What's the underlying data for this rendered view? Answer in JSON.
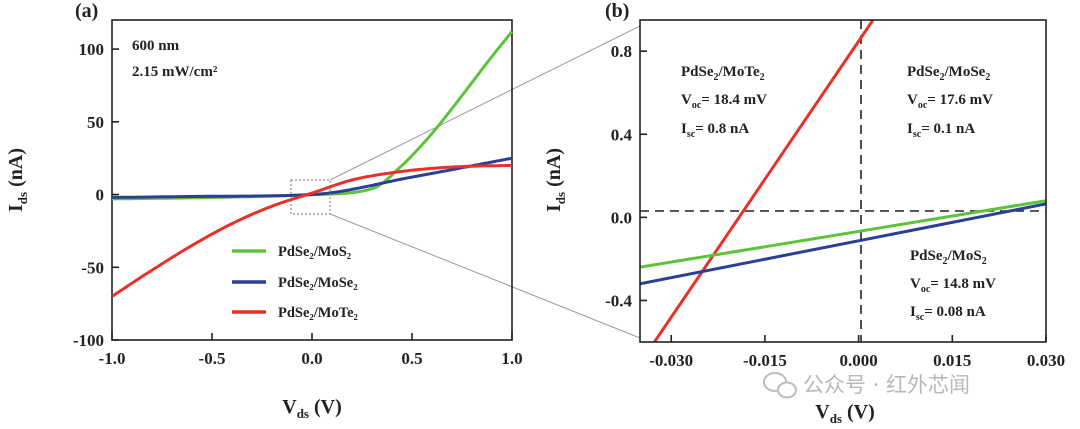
{
  "chart_data": [
    {
      "panel": "(a)",
      "type": "line",
      "xlabel": "V_ds (V)",
      "ylabel": "I_ds (nA)",
      "xlim": [
        -1.0,
        1.0
      ],
      "ylim": [
        -100,
        120
      ],
      "xticks": [
        "-1.0",
        "-0.5",
        "0.0",
        "0.5",
        "1.0"
      ],
      "yticks": [
        "-100",
        "-50",
        "0",
        "50",
        "100"
      ],
      "annotation": [
        "600 nm",
        "2.15 mW/cm²"
      ],
      "legend": "lower-center",
      "series": [
        {
          "name": "PdSe₂/MoS₂",
          "color": "#5cc43a",
          "x": [
            -1.0,
            -0.5,
            0.0,
            0.3,
            0.45,
            0.6,
            0.75,
            0.9,
            1.0
          ],
          "y": [
            -3,
            -2,
            -0.1,
            4,
            20,
            42,
            68,
            95,
            112
          ]
        },
        {
          "name": "PdSe₂/MoSe₂",
          "color": "#2b3f96",
          "x": [
            -1.0,
            -0.5,
            0.0,
            0.5,
            1.0
          ],
          "y": [
            -2,
            -1.2,
            0,
            12,
            25
          ]
        },
        {
          "name": "PdSe₂/MoTe₂",
          "color": "#e8312a",
          "x": [
            -1.0,
            -0.8,
            -0.6,
            -0.4,
            -0.2,
            0.0,
            0.2,
            0.4,
            0.6,
            0.8,
            1.0
          ],
          "y": [
            -70,
            -52,
            -35,
            -20,
            -8,
            1,
            10,
            15,
            18,
            19.5,
            20
          ]
        }
      ]
    },
    {
      "panel": "(b)",
      "type": "line",
      "xlabel": "V_ds (V)",
      "ylabel": "I_ds (nA)",
      "xlim": [
        -0.035,
        0.03
      ],
      "ylim": [
        -0.6,
        0.95
      ],
      "xticks": [
        "-0.030",
        "-0.015",
        "0.000",
        "0.015",
        "0.030"
      ],
      "yticks": [
        "-0.4",
        "0.0",
        "0.4",
        "0.8"
      ],
      "series": [
        {
          "name": "PdSe₂/MoTe₂",
          "color": "#e8312a",
          "x": [
            -0.0327,
            0.0023
          ],
          "y": [
            -0.6,
            0.95
          ]
        },
        {
          "name": "PdSe₂/MoSe₂",
          "color": "#2b3f96",
          "x": [
            -0.035,
            0.03
          ],
          "y": [
            -0.32,
            0.065
          ]
        },
        {
          "name": "PdSe₂/MoS₂",
          "color": "#5cc43a",
          "x": [
            -0.035,
            0.03
          ],
          "y": [
            -0.24,
            0.08
          ]
        }
      ],
      "annotations": [
        {
          "lines": [
            "PdSe₂/MoTe₂",
            "V_oc = 18.4 mV",
            "I_sc = 0.8 nA"
          ]
        },
        {
          "lines": [
            "PdSe₂/MoSe₂",
            "V_oc = 17.6 mV",
            "I_sc = 0.1 nA"
          ]
        },
        {
          "lines": [
            "PdSe₂/MoS₂",
            "V_oc = 14.8 mV",
            "I_sc = 0.08 nA"
          ]
        }
      ]
    }
  ],
  "watermark": "公众号 · 红外芯闻"
}
